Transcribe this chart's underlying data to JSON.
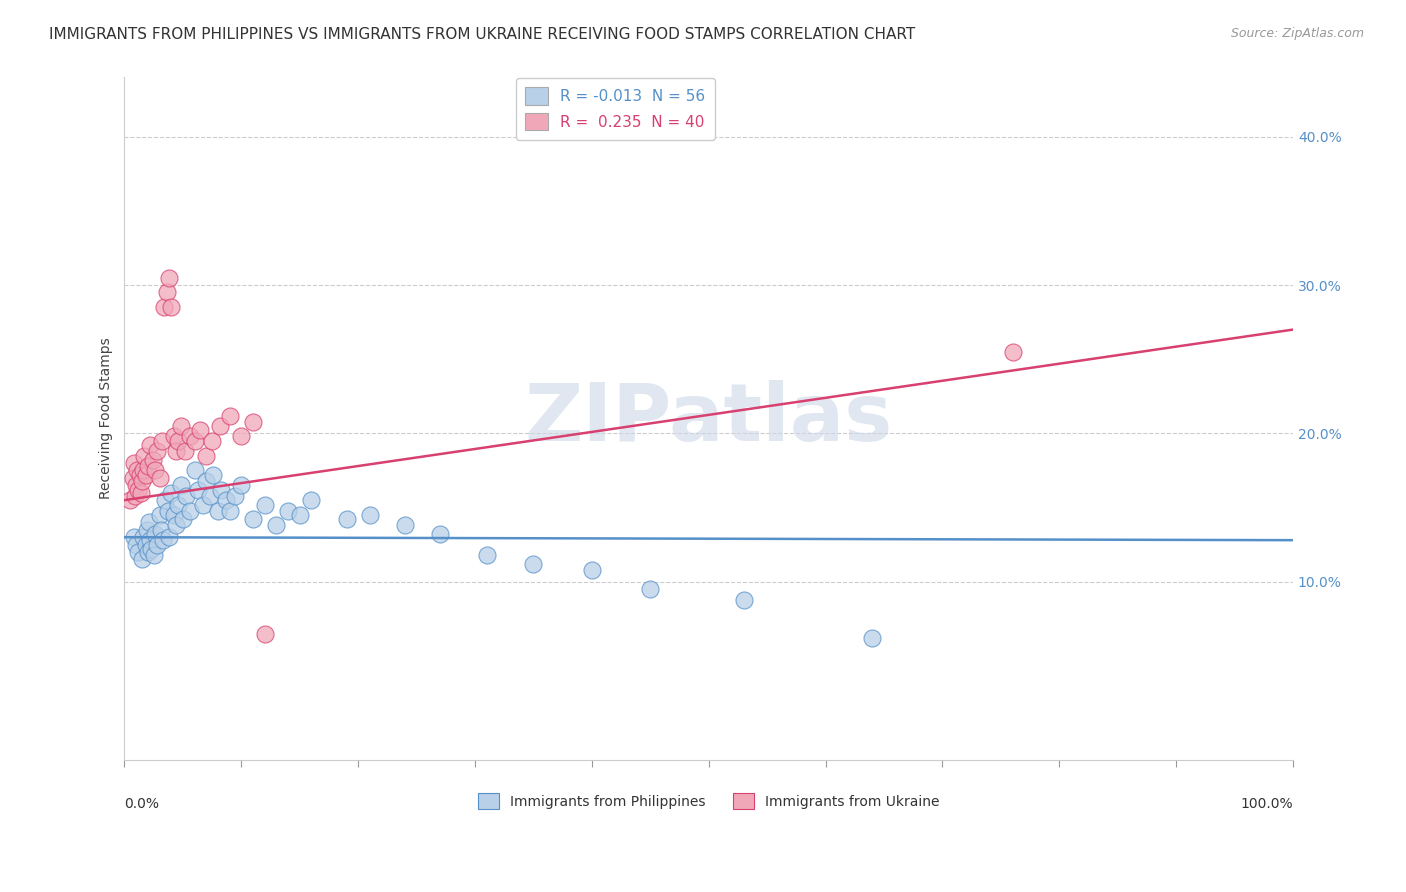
{
  "title": "IMMIGRANTS FROM PHILIPPINES VS IMMIGRANTS FROM UKRAINE RECEIVING FOOD STAMPS CORRELATION CHART",
  "source": "Source: ZipAtlas.com",
  "ylabel": "Receiving Food Stamps",
  "yticks": [
    0.1,
    0.2,
    0.3,
    0.4
  ],
  "ytick_labels": [
    "10.0%",
    "20.0%",
    "30.0%",
    "40.0%"
  ],
  "xlim": [
    0.0,
    1.0
  ],
  "ylim": [
    -0.02,
    0.44
  ],
  "legend_entries": [
    {
      "label": "R = -0.013  N = 56",
      "color": "#b8d0e8"
    },
    {
      "label": "R =  0.235  N = 40",
      "color": "#f0a8b8"
    }
  ],
  "philippines_color": "#b8d0e8",
  "ukraine_color": "#f0a8b8",
  "philippines_line_color": "#5590c8",
  "ukraine_line_color": "#d84070",
  "background_color": "#ffffff",
  "grid_color": "#cccccc",
  "philippines_x": [
    0.008,
    0.01,
    0.012,
    0.015,
    0.016,
    0.018,
    0.019,
    0.02,
    0.021,
    0.022,
    0.023,
    0.025,
    0.026,
    0.028,
    0.03,
    0.031,
    0.033,
    0.035,
    0.037,
    0.038,
    0.04,
    0.042,
    0.044,
    0.046,
    0.048,
    0.05,
    0.053,
    0.056,
    0.06,
    0.063,
    0.067,
    0.07,
    0.073,
    0.076,
    0.08,
    0.083,
    0.087,
    0.09,
    0.095,
    0.1,
    0.11,
    0.12,
    0.13,
    0.14,
    0.15,
    0.16,
    0.19,
    0.21,
    0.24,
    0.27,
    0.31,
    0.35,
    0.4,
    0.45,
    0.53,
    0.64
  ],
  "philippines_y": [
    0.13,
    0.125,
    0.12,
    0.115,
    0.13,
    0.125,
    0.135,
    0.12,
    0.14,
    0.128,
    0.122,
    0.118,
    0.132,
    0.125,
    0.145,
    0.135,
    0.128,
    0.155,
    0.148,
    0.13,
    0.16,
    0.145,
    0.138,
    0.152,
    0.165,
    0.142,
    0.158,
    0.148,
    0.175,
    0.162,
    0.152,
    0.168,
    0.158,
    0.172,
    0.148,
    0.162,
    0.155,
    0.148,
    0.158,
    0.165,
    0.142,
    0.152,
    0.138,
    0.148,
    0.145,
    0.155,
    0.142,
    0.145,
    0.138,
    0.132,
    0.118,
    0.112,
    0.108,
    0.095,
    0.088,
    0.062
  ],
  "ukraine_x": [
    0.005,
    0.007,
    0.008,
    0.009,
    0.01,
    0.011,
    0.012,
    0.013,
    0.014,
    0.015,
    0.016,
    0.017,
    0.018,
    0.02,
    0.022,
    0.024,
    0.026,
    0.028,
    0.03,
    0.032,
    0.034,
    0.036,
    0.038,
    0.04,
    0.042,
    0.044,
    0.046,
    0.048,
    0.052,
    0.056,
    0.06,
    0.065,
    0.07,
    0.075,
    0.082,
    0.09,
    0.1,
    0.11,
    0.76,
    0.12
  ],
  "ukraine_y": [
    0.155,
    0.17,
    0.18,
    0.158,
    0.165,
    0.175,
    0.162,
    0.172,
    0.16,
    0.168,
    0.175,
    0.185,
    0.172,
    0.178,
    0.192,
    0.182,
    0.175,
    0.188,
    0.17,
    0.195,
    0.285,
    0.295,
    0.305,
    0.285,
    0.198,
    0.188,
    0.195,
    0.205,
    0.188,
    0.198,
    0.195,
    0.202,
    0.185,
    0.195,
    0.205,
    0.212,
    0.198,
    0.208,
    0.255,
    0.065
  ],
  "watermark": "ZIPatlas",
  "title_fontsize": 11,
  "axis_label_fontsize": 10,
  "tick_fontsize": 10,
  "legend_fontsize": 11,
  "phil_R": -0.013,
  "ukr_R": 0.235,
  "phil_line_y0": 0.13,
  "phil_line_y1": 0.128,
  "ukr_line_y0": 0.155,
  "ukr_line_y1": 0.27
}
